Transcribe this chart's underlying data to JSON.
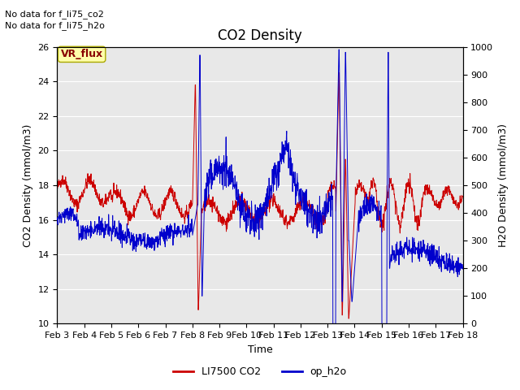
{
  "title": "CO2 Density",
  "xlabel": "Time",
  "ylabel_left": "CO2 Density (mmol/m3)",
  "ylabel_right": "H2O Density (mmol/m3)",
  "ylim_left": [
    10,
    26
  ],
  "ylim_right": [
    0,
    1000
  ],
  "yticks_left": [
    10,
    12,
    14,
    16,
    18,
    20,
    22,
    24,
    26
  ],
  "yticks_right": [
    0,
    100,
    200,
    300,
    400,
    500,
    600,
    700,
    800,
    900,
    1000
  ],
  "xtick_labels": [
    "Feb 3",
    "Feb 4",
    "Feb 5",
    "Feb 6",
    "Feb 7",
    "Feb 8",
    "Feb 9",
    "Feb 10",
    "Feb 11",
    "Feb 12",
    "Feb 13",
    "Feb 14",
    "Feb 15",
    "Feb 16",
    "Feb 17",
    "Feb 18"
  ],
  "legend_labels": [
    "LI7500 CO2",
    "op_h2o"
  ],
  "legend_colors": [
    "#cc0000",
    "#0000cc"
  ],
  "line_color_co2": "#cc0000",
  "line_color_h2o": "#0000cc",
  "annotation_text1": "No data for f_li75_co2",
  "annotation_text2": "No data for f_li75_h2o",
  "vr_flux_label": "VR_flux",
  "vr_flux_color": "#880000",
  "vr_flux_bg": "#ffffaa",
  "background_color": "#e8e8e8",
  "grid_color": "#ffffff",
  "title_fontsize": 12,
  "label_fontsize": 9,
  "tick_fontsize": 8,
  "annot_fontsize": 8,
  "legend_fontsize": 9
}
